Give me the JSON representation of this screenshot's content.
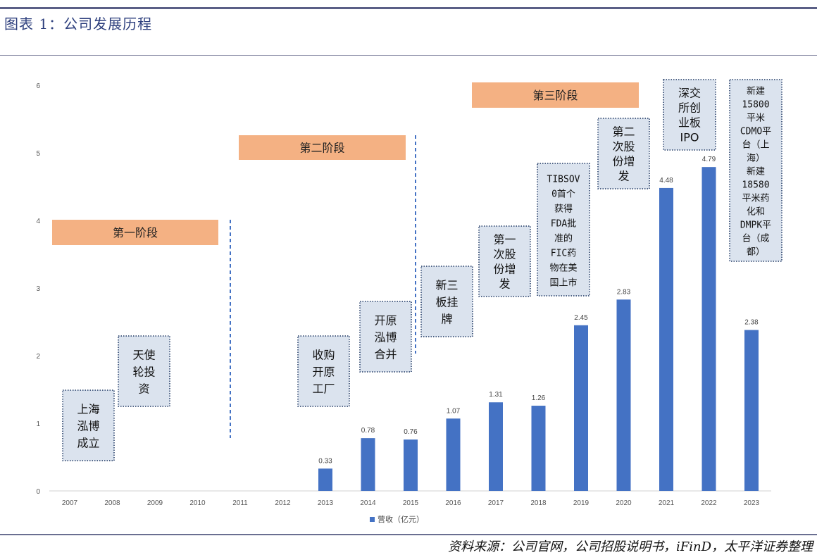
{
  "figure_title": "图表 1：公司发展历程",
  "source": "资料来源：公司官网，公司招股说明书，iFinD，太平洋证券整理",
  "colors": {
    "bar": "#4472c4",
    "stage": "#f4b183",
    "box_fill": "#dbe3ee",
    "box_border": "#1f3864",
    "divider": "#4472c4"
  },
  "chart_data": {
    "type": "bar",
    "categories": [
      "2007",
      "2008",
      "2009",
      "2010",
      "2011",
      "2012",
      "2013",
      "2014",
      "2015",
      "2016",
      "2017",
      "2018",
      "2019",
      "2020",
      "2021",
      "2022",
      "2023"
    ],
    "series": [
      {
        "name": "营收（亿元）",
        "values": [
          null,
          null,
          null,
          null,
          null,
          null,
          0.33,
          0.78,
          0.76,
          1.07,
          1.31,
          1.26,
          2.45,
          2.83,
          4.48,
          4.79,
          2.38
        ]
      }
    ],
    "data_labels": [
      "",
      "",
      "",
      "",
      "",
      "",
      "0.33",
      "0.78",
      "0.76",
      "1.07",
      "1.31",
      "1.26",
      "2.45",
      "2.83",
      "4.48",
      "4.79",
      "2.38"
    ],
    "ylim": [
      0,
      6
    ],
    "yticks": [
      "0",
      "1",
      "2",
      "3",
      "4",
      "5",
      "6"
    ],
    "legend_position": "bottom",
    "grid": false,
    "stages": [
      {
        "label": "第一阶段",
        "from": 2007,
        "to": 2010
      },
      {
        "label": "第二阶段",
        "from": 2011,
        "to": 2014
      },
      {
        "label": "第三阶段",
        "from": 2017,
        "to": 2020
      }
    ],
    "annotations": [
      {
        "lines": [
          "上海",
          "泓博",
          "成立"
        ]
      },
      {
        "lines": [
          "天使",
          "轮投",
          "资"
        ]
      },
      {
        "lines": [
          "收购",
          "开原",
          "工厂"
        ]
      },
      {
        "lines": [
          "开原",
          "泓博",
          "合并"
        ]
      },
      {
        "lines": [
          "新三",
          "板挂",
          "牌"
        ]
      },
      {
        "lines": [
          "第一",
          "次股",
          "份增",
          "发"
        ]
      },
      {
        "lines": [
          "TIBSOV",
          "0首个",
          "获得",
          "FDA批",
          "准的",
          "FIC药",
          "物在美",
          "国上市"
        ]
      },
      {
        "lines": [
          "第二",
          "次股",
          "份增",
          "发"
        ]
      },
      {
        "lines": [
          "深交",
          "所创",
          "业板",
          "IPO"
        ]
      },
      {
        "lines": [
          "新建",
          "15800",
          "平米",
          "CDMO平",
          "台（上",
          "海）",
          "新建",
          "18580",
          "平米药",
          "化和",
          "DMPK平",
          "台（成",
          "都）"
        ]
      }
    ]
  }
}
